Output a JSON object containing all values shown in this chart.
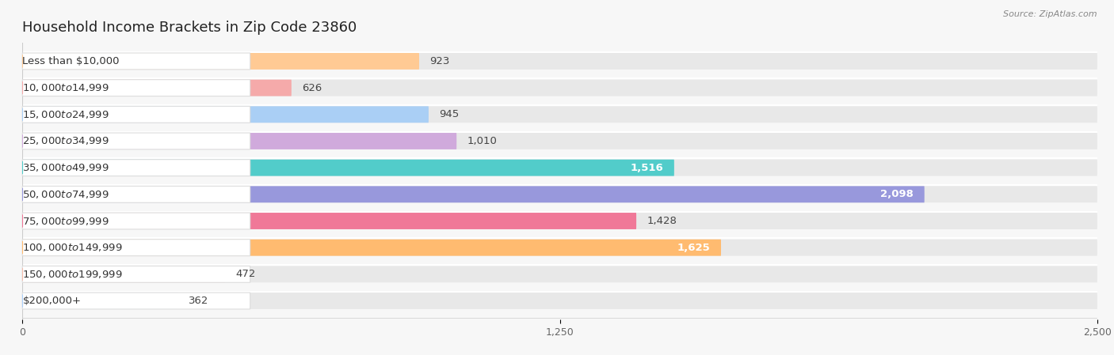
{
  "title": "Household Income Brackets in Zip Code 23860",
  "source": "Source: ZipAtlas.com",
  "categories": [
    "Less than $10,000",
    "$10,000 to $14,999",
    "$15,000 to $24,999",
    "$25,000 to $34,999",
    "$35,000 to $49,999",
    "$50,000 to $74,999",
    "$75,000 to $99,999",
    "$100,000 to $149,999",
    "$150,000 to $199,999",
    "$200,000+"
  ],
  "values": [
    923,
    626,
    945,
    1010,
    1516,
    2098,
    1428,
    1625,
    472,
    362
  ],
  "bar_colors": [
    "#FFCA94",
    "#F5AAAA",
    "#AACFF5",
    "#D0AADC",
    "#52CCCA",
    "#9898DC",
    "#F07898",
    "#FFBB70",
    "#F5BBAA",
    "#AACFFA"
  ],
  "label_pill_colors": [
    "#FFCA94",
    "#F5AAAA",
    "#AACFF5",
    "#D0AADC",
    "#52CCCA",
    "#9898DC",
    "#F07898",
    "#FFBB70",
    "#F5BBAA",
    "#AACFFA"
  ],
  "background_color": "#f7f7f7",
  "bar_bg_color": "#e8e8e8",
  "xlim": [
    0,
    2500
  ],
  "xticks": [
    0,
    1250,
    2500
  ],
  "title_fontsize": 13,
  "label_fontsize": 9.5,
  "value_fontsize": 9.5
}
